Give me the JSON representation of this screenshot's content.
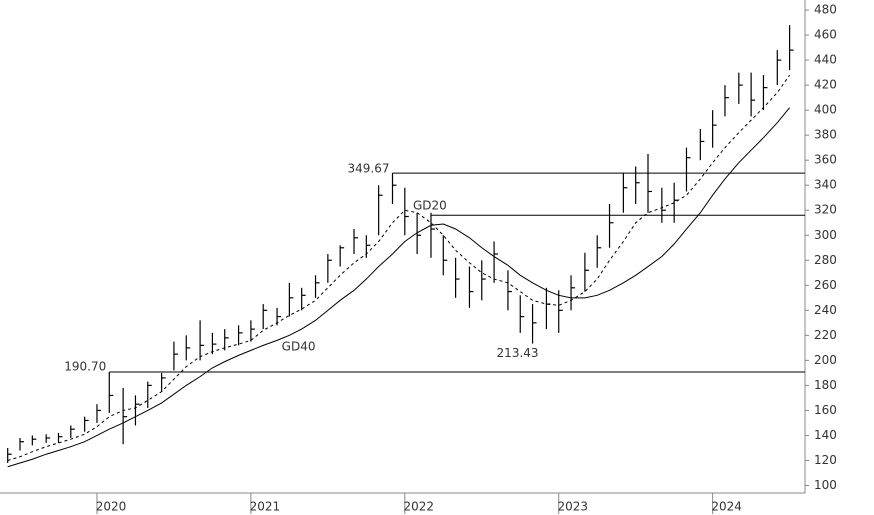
{
  "chart_data": {
    "type": "ohlc",
    "x": [
      2019.42,
      2019.5,
      2019.58,
      2019.67,
      2019.75,
      2019.83,
      2019.92,
      2020.0,
      2020.08,
      2020.17,
      2020.25,
      2020.33,
      2020.42,
      2020.5,
      2020.58,
      2020.67,
      2020.75,
      2020.83,
      2020.92,
      2021.0,
      2021.08,
      2021.17,
      2021.25,
      2021.33,
      2021.42,
      2021.5,
      2021.58,
      2021.67,
      2021.75,
      2021.83,
      2021.92,
      2022.0,
      2022.08,
      2022.17,
      2022.25,
      2022.33,
      2022.42,
      2022.5,
      2022.58,
      2022.67,
      2022.75,
      2022.83,
      2022.92,
      2023.0,
      2023.08,
      2023.17,
      2023.25,
      2023.33,
      2023.42,
      2023.5,
      2023.58,
      2023.67,
      2023.75,
      2023.83,
      2023.92,
      2024.0,
      2024.08,
      2024.17,
      2024.25,
      2024.33,
      2024.42,
      2024.5
    ],
    "high": [
      130,
      138,
      140,
      141,
      142,
      148,
      155,
      165,
      190.7,
      178,
      172,
      183,
      190,
      215,
      220,
      232,
      222,
      225,
      228,
      232,
      245,
      242,
      262,
      258,
      268,
      285,
      292,
      305,
      300,
      340,
      349.67,
      338,
      318,
      318,
      300,
      282,
      275,
      280,
      295,
      272,
      252,
      245,
      258,
      256,
      268,
      286,
      300,
      325,
      350,
      355,
      365,
      338,
      342,
      370,
      385,
      400,
      420,
      430,
      430,
      428,
      448,
      468
    ],
    "low": [
      118,
      128,
      132,
      134,
      134,
      138,
      143,
      150,
      158,
      133,
      148,
      162,
      175,
      192,
      200,
      200,
      205,
      208,
      212,
      215,
      225,
      228,
      235,
      240,
      250,
      262,
      275,
      285,
      282,
      300,
      325,
      300,
      285,
      282,
      268,
      250,
      242,
      248,
      262,
      240,
      222,
      213.43,
      225,
      222,
      240,
      255,
      274,
      290,
      318,
      325,
      318,
      310,
      310,
      335,
      360,
      370,
      395,
      405,
      395,
      400,
      420,
      432
    ],
    "close": [
      125,
      135,
      137,
      138,
      139,
      145,
      152,
      160,
      172,
      155,
      165,
      180,
      186,
      205,
      210,
      212,
      213,
      218,
      222,
      225,
      240,
      235,
      250,
      252,
      262,
      280,
      290,
      298,
      292,
      332,
      340,
      315,
      300,
      305,
      280,
      265,
      255,
      265,
      285,
      255,
      235,
      230,
      245,
      240,
      258,
      272,
      290,
      310,
      338,
      342,
      335,
      320,
      328,
      362,
      375,
      388,
      410,
      420,
      408,
      418,
      440,
      448
    ],
    "color": "#000000",
    "lines": [
      {
        "name": "GD20",
        "dash": true,
        "color": "#000000",
        "values": [
          120,
          123,
          127,
          131,
          134,
          137,
          141,
          147,
          155,
          160,
          162,
          168,
          175,
          185,
          195,
          203,
          207,
          210,
          213,
          216,
          224,
          230,
          236,
          241,
          248,
          258,
          268,
          278,
          285,
          295,
          310,
          320,
          318,
          310,
          300,
          288,
          278,
          270,
          265,
          262,
          255,
          248,
          245,
          244,
          248,
          255,
          265,
          280,
          295,
          310,
          318,
          322,
          326,
          332,
          345,
          358,
          370,
          382,
          392,
          402,
          414,
          428
        ]
      },
      {
        "name": "GD40",
        "dash": false,
        "color": "#000000",
        "values": [
          115,
          118,
          121,
          125,
          128,
          131,
          135,
          140,
          145,
          150,
          155,
          160,
          166,
          173,
          180,
          187,
          194,
          199,
          204,
          208,
          212,
          216,
          220,
          225,
          232,
          240,
          248,
          256,
          265,
          275,
          285,
          295,
          302,
          308,
          309,
          305,
          298,
          290,
          283,
          276,
          268,
          262,
          256,
          252,
          250,
          250,
          252,
          256,
          262,
          268,
          275,
          283,
          293,
          305,
          318,
          332,
          345,
          358,
          368,
          378,
          390,
          402
        ]
      }
    ],
    "levels": [
      {
        "value": 349.67,
        "from": 2021.92
      },
      {
        "value": 316,
        "from": 2022.17
      },
      {
        "value": 190.7,
        "label": "190.70",
        "from": 2020.08
      }
    ],
    "ylim": [
      94,
      487
    ],
    "yticks": [
      100,
      120,
      140,
      160,
      180,
      200,
      220,
      240,
      260,
      280,
      300,
      320,
      340,
      360,
      380,
      400,
      420,
      440,
      460,
      480
    ],
    "xlim": [
      2019.37,
      2024.6
    ],
    "xticks": [
      2020,
      2021,
      2022,
      2023,
      2024
    ],
    "grid": false
  }
}
